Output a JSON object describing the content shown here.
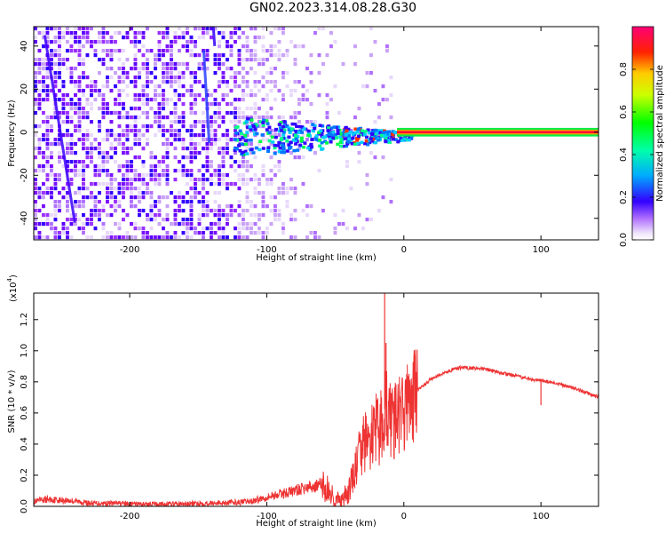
{
  "title": "GN02.2023.314.08.28.G30",
  "chart_data": [
    {
      "type": "heatmap",
      "xlabel": "Height of straight line (km)",
      "ylabel": "Frequency (Hz)",
      "xlim": [
        -270,
        142
      ],
      "ylim": [
        -50,
        49
      ],
      "x_ticks": [
        -200,
        -100,
        0,
        100
      ],
      "y_ticks": [
        -40,
        -20,
        0,
        20,
        40
      ],
      "colorbar": {
        "label": "Normalized spectral amplitude",
        "range": [
          0,
          1
        ],
        "ticks": [
          0.0,
          0.2,
          0.4,
          0.6,
          0.8
        ],
        "tick_labels": [
          "0.0",
          "0.2",
          "0.4",
          "0.6",
          "0.8"
        ],
        "colors": [
          "#ffffff",
          "#e0c8f8",
          "#9b30ff",
          "#2200ff",
          "#00aaff",
          "#00ffaa",
          "#00ff00",
          "#aaff00",
          "#ffff00",
          "#ff8800",
          "#ff0000",
          "#ff0066"
        ]
      }
    },
    {
      "type": "line",
      "xlabel": "Height of straight line (km)",
      "ylabel": "SNR (10 * v/v)",
      "y_scale_note": "(x10",
      "y_scale_exp": "4",
      "y_scale_close": ")",
      "xlim": [
        -270,
        142
      ],
      "ylim": [
        0,
        1.37
      ],
      "x_ticks": [
        -200,
        -100,
        0,
        100
      ],
      "y_ticks": [
        0.0,
        0.2,
        0.4,
        0.6,
        0.8,
        1.0,
        1.2
      ],
      "y_tick_labels": [
        "0.0",
        "0.2",
        "0.4",
        "0.6",
        "0.8",
        "1.0",
        "1.2"
      ],
      "color": "#ee3333",
      "series": [
        {
          "x": [
            -270,
            -260,
            -250,
            -240,
            -230,
            -220,
            -210,
            -200,
            -190,
            -180,
            -170,
            -160,
            -150,
            -140,
            -130,
            -120,
            -110,
            -100,
            -90,
            -80,
            -70,
            -60,
            -55,
            -50,
            -45,
            -40,
            -35,
            -30,
            -25,
            -20,
            -18,
            -15,
            -13,
            -10,
            -5,
            0,
            5,
            10,
            15,
            20,
            30,
            40,
            50,
            60,
            70,
            80,
            90,
            100,
            110,
            120,
            130,
            142
          ],
          "y": [
            0.03,
            0.045,
            0.04,
            0.035,
            0.02,
            0.02,
            0.02,
            0.015,
            0.015,
            0.015,
            0.015,
            0.015,
            0.02,
            0.02,
            0.025,
            0.025,
            0.035,
            0.06,
            0.08,
            0.1,
            0.12,
            0.14,
            0.1,
            0.04,
            0.02,
            0.1,
            0.25,
            0.4,
            0.42,
            0.5,
            0.45,
            0.6,
            0.65,
            0.55,
            0.55,
            0.62,
            0.68,
            0.75,
            0.78,
            0.82,
            0.86,
            0.89,
            0.89,
            0.88,
            0.86,
            0.84,
            0.82,
            0.81,
            0.79,
            0.77,
            0.74,
            0.7
          ]
        }
      ],
      "spikes": [
        {
          "x": -14,
          "y": 1.37
        },
        {
          "x": -13,
          "y": 1.05
        },
        {
          "x": 100,
          "y": 0.65
        }
      ]
    }
  ]
}
